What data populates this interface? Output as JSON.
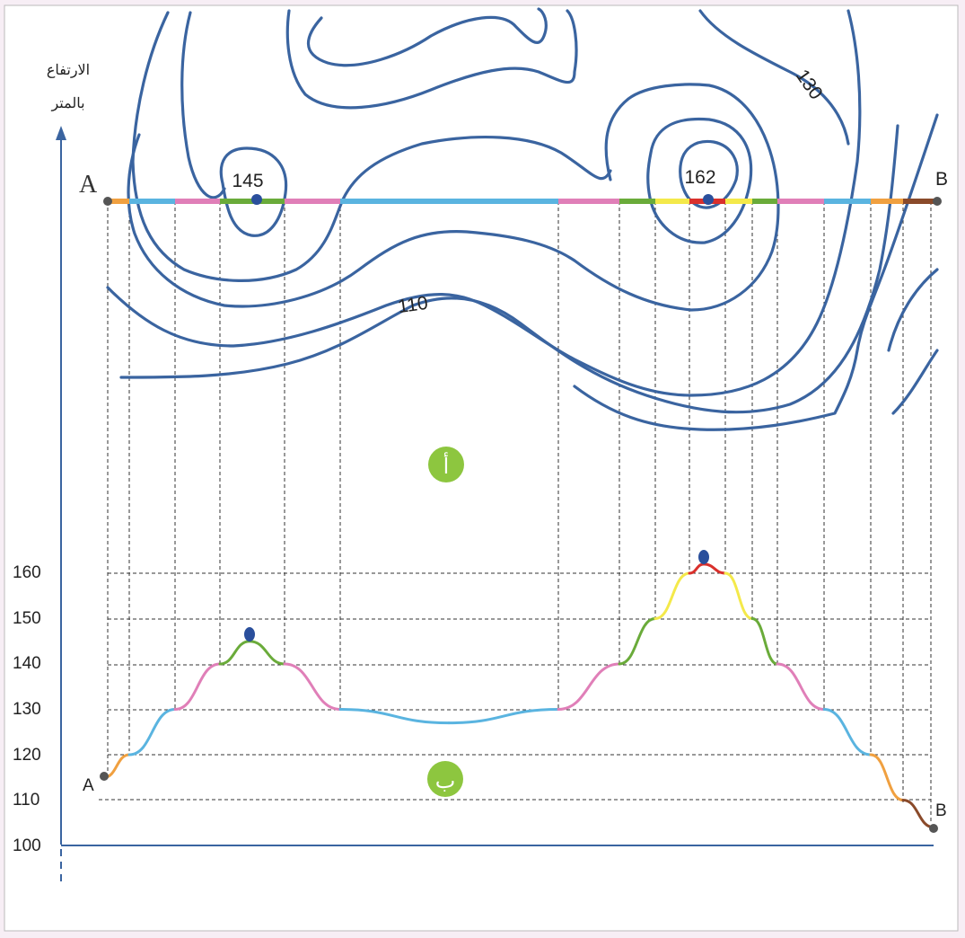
{
  "axis": {
    "title_line1": "الارتفاع",
    "title_line2": "بالمتر",
    "ticks": [
      "160",
      "150",
      "140",
      "130",
      "120",
      "110",
      "100"
    ]
  },
  "map": {
    "point_a": "A",
    "point_b": "B",
    "peak_left_label": "145",
    "peak_right_label": "162",
    "contour_label_110": "110",
    "contour_label_130": "130",
    "section_badge": "أ",
    "line_color": "#3a64a0"
  },
  "profile": {
    "point_a": "A",
    "point_b": "B",
    "section_badge": "ب"
  },
  "colors": {
    "orange": "#f0a040",
    "cyan": "#5ab4e0",
    "pink": "#e07fb8",
    "green": "#6aab3a",
    "yellow": "#f4e94a",
    "red": "#d9302c",
    "brown": "#8a4a2a",
    "badge": "#8dc63f",
    "peak_marker": "#2a4f9c"
  },
  "chart_data": {
    "type": "line",
    "title": "",
    "xlabel": "",
    "ylabel": "الارتفاع بالمتر",
    "ylim": [
      100,
      165
    ],
    "y_ticks": [
      100,
      110,
      120,
      130,
      140,
      150,
      160
    ],
    "series": [
      {
        "x": [
          "A",
          "",
          "",
          "",
          "145",
          "",
          "",
          "",
          "",
          "",
          "",
          "",
          "162",
          "",
          "",
          "",
          "",
          "",
          "",
          "B"
        ],
        "values": [
          115,
          120,
          130,
          140,
          145,
          140,
          130,
          127,
          130,
          140,
          150,
          160,
          162,
          160,
          150,
          140,
          130,
          120,
          110,
          104
        ]
      }
    ]
  }
}
